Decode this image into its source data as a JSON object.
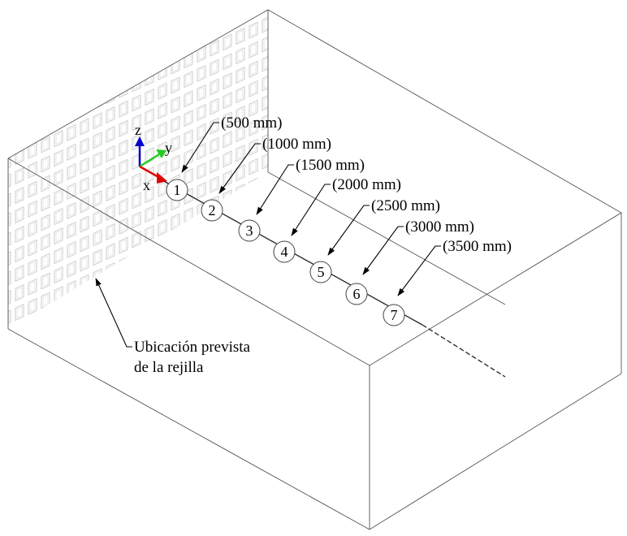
{
  "probes": [
    {
      "n": "1",
      "label": "(500 mm)"
    },
    {
      "n": "2",
      "label": "(1000 mm)"
    },
    {
      "n": "3",
      "label": "(1500 mm)"
    },
    {
      "n": "4",
      "label": "(2000 mm)"
    },
    {
      "n": "5",
      "label": "(2500 mm)"
    },
    {
      "n": "6",
      "label": "(3000 mm)"
    },
    {
      "n": "7",
      "label": "(3500 mm)"
    }
  ],
  "grid_note": {
    "line1": "Ubicación prevista",
    "line2": "de la rejilla"
  },
  "axes": {
    "x": "x",
    "y": "y",
    "z": "z",
    "x_color": "#e00000",
    "y_color": "#22cc22",
    "z_color": "#0000cc"
  }
}
